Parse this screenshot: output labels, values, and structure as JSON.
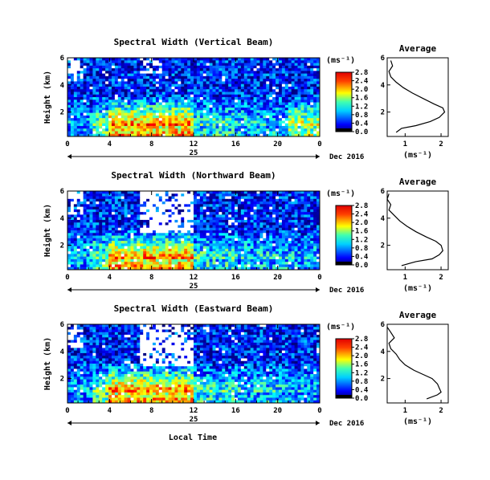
{
  "figure": {
    "x_axis_label": "Local Time",
    "date_label": "Dec 2016",
    "day_label": "25",
    "y_axis_label": "Height (km)",
    "colorbar_unit": "(ms⁻¹)",
    "average_title": "Average",
    "average_xlabel": "(ms⁻¹)"
  },
  "chart_data": [
    {
      "type": "heatmap",
      "title": "Spectral Width (Vertical Beam)",
      "x_ticks": [
        "0",
        "4",
        "8",
        "12",
        "16",
        "20",
        "0"
      ],
      "xlim": [
        0,
        24
      ],
      "y_ticks": [
        "2",
        "4",
        "6"
      ],
      "ylim": [
        0.2,
        6
      ],
      "colorbar_ticks": [
        "0.0",
        "0.4",
        "0.8",
        "1.2",
        "1.6",
        "2.0",
        "2.4",
        "2.8"
      ],
      "colorbar_range": [
        0,
        2.8
      ],
      "average_profile": {
        "x_ticks": [
          "1",
          "2"
        ],
        "xlim": [
          0.5,
          2.2
        ],
        "y_ticks": [
          "2",
          "4",
          "6"
        ],
        "ylim": [
          0.2,
          6
        ],
        "height_km": [
          0.5,
          0.8,
          1.0,
          1.3,
          1.6,
          2.0,
          2.3,
          2.6,
          3.0,
          3.4,
          3.8,
          4.2,
          4.6,
          5.0,
          5.4,
          5.8
        ],
        "value": [
          0.75,
          0.9,
          1.3,
          1.7,
          1.95,
          2.1,
          2.05,
          1.8,
          1.5,
          1.2,
          0.95,
          0.75,
          0.6,
          0.55,
          0.65,
          0.6
        ]
      }
    },
    {
      "type": "heatmap",
      "title": "Spectral Width (Northward Beam)",
      "x_ticks": [
        "0",
        "4",
        "8",
        "12",
        "16",
        "20",
        "0"
      ],
      "xlim": [
        0,
        24
      ],
      "y_ticks": [
        "2",
        "4",
        "6"
      ],
      "ylim": [
        0.2,
        6
      ],
      "colorbar_ticks": [
        "0.0",
        "0.4",
        "0.8",
        "1.2",
        "1.6",
        "2.0",
        "2.4",
        "2.8"
      ],
      "colorbar_range": [
        0,
        2.8
      ],
      "average_profile": {
        "x_ticks": [
          "1",
          "2"
        ],
        "xlim": [
          0.5,
          2.2
        ],
        "y_ticks": [
          "2",
          "4",
          "6"
        ],
        "ylim": [
          0.2,
          6
        ],
        "height_km": [
          0.5,
          0.8,
          1.0,
          1.3,
          1.6,
          2.0,
          2.3,
          2.6,
          3.0,
          3.4,
          3.8,
          4.2,
          4.6,
          5.0,
          5.4,
          5.8
        ],
        "value": [
          0.9,
          1.3,
          1.75,
          1.95,
          2.05,
          2.0,
          1.85,
          1.6,
          1.3,
          1.05,
          0.85,
          0.7,
          0.55,
          0.6,
          0.5,
          0.55
        ]
      }
    },
    {
      "type": "heatmap",
      "title": "Spectral Width (Eastward Beam)",
      "x_ticks": [
        "0",
        "4",
        "8",
        "12",
        "16",
        "20",
        "0"
      ],
      "xlim": [
        0,
        24
      ],
      "y_ticks": [
        "2",
        "4",
        "6"
      ],
      "ylim": [
        0.2,
        6
      ],
      "colorbar_ticks": [
        "0.0",
        "0.4",
        "0.8",
        "1.2",
        "1.6",
        "2.0",
        "2.4",
        "2.8"
      ],
      "colorbar_range": [
        0,
        2.8
      ],
      "average_profile": {
        "x_ticks": [
          "1",
          "2"
        ],
        "xlim": [
          0.5,
          2.2
        ],
        "y_ticks": [
          "2",
          "4",
          "6"
        ],
        "ylim": [
          0.2,
          6
        ],
        "height_km": [
          0.5,
          0.8,
          1.0,
          1.3,
          1.6,
          2.0,
          2.3,
          2.6,
          3.0,
          3.4,
          3.8,
          4.2,
          4.6,
          5.0,
          5.4,
          5.8
        ],
        "value": [
          1.6,
          1.9,
          2.0,
          1.95,
          1.9,
          1.75,
          1.5,
          1.25,
          1.0,
          0.85,
          0.75,
          0.6,
          0.55,
          0.7,
          0.6,
          0.5
        ]
      }
    }
  ]
}
